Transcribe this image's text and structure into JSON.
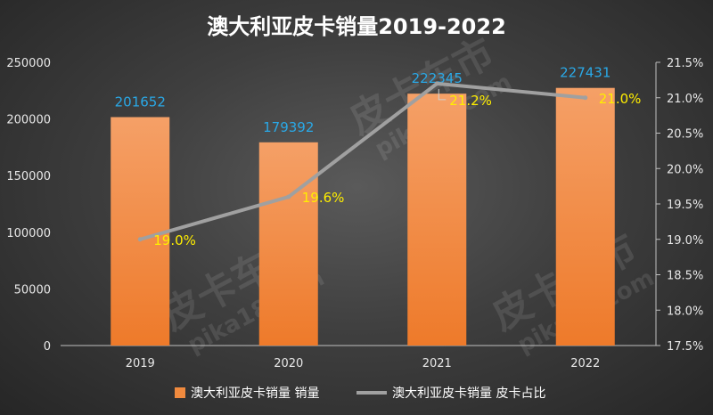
{
  "chart_data": {
    "type": "bar",
    "title": "澳大利亚皮卡销量2019-2022",
    "categories": [
      "2019",
      "2020",
      "2021",
      "2022"
    ],
    "series": [
      {
        "name": "澳大利亚皮卡销量 销量",
        "type": "bar",
        "axis": "left",
        "values": [
          201652,
          179392,
          222345,
          227431
        ],
        "labels": [
          "201652",
          "179392",
          "222345",
          "227431"
        ]
      },
      {
        "name": "澳大利亚皮卡销量 皮卡占比",
        "type": "line",
        "axis": "right",
        "values": [
          19.0,
          19.6,
          21.2,
          21.0
        ],
        "labels": [
          "19.0%",
          "19.6%",
          "21.2%",
          "21.0%"
        ]
      }
    ],
    "y_left": {
      "range": [
        0,
        250000
      ],
      "ticks": [
        "0",
        "50000",
        "100000",
        "150000",
        "200000",
        "250000"
      ]
    },
    "y_right": {
      "range": [
        17.5,
        21.5
      ],
      "ticks": [
        "17.5%",
        "18.0%",
        "18.5%",
        "19.0%",
        "19.5%",
        "20.0%",
        "20.5%",
        "21.0%",
        "21.5%"
      ]
    },
    "grid": false,
    "legend_position": "bottom",
    "colors": {
      "bar": "#f08a3e",
      "line": "#a0a0a0",
      "bar_label": "#2aa8e6",
      "pct_label": "#ffee00"
    }
  },
  "watermark": {
    "brand": "皮卡车市",
    "site": "pika18.com"
  }
}
